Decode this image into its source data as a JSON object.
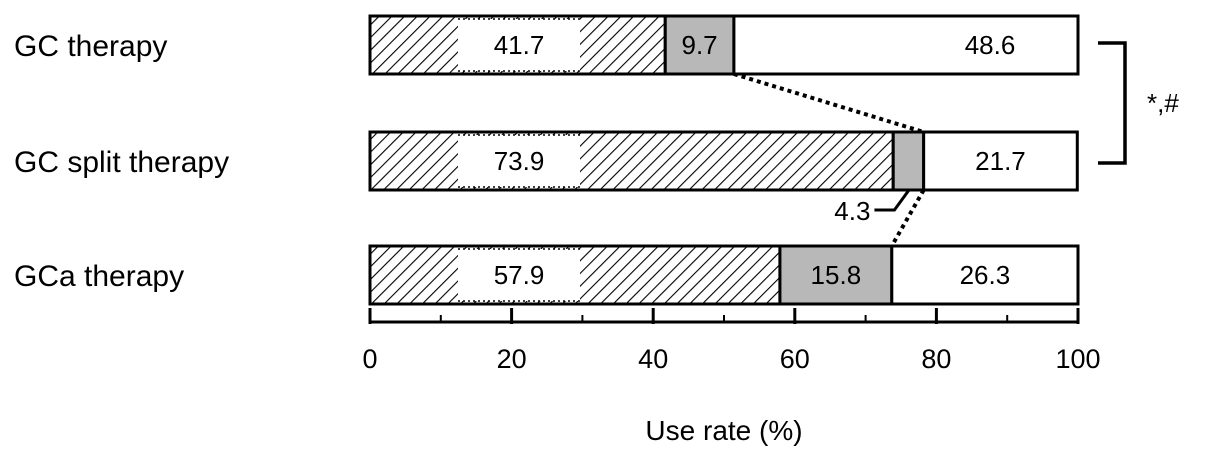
{
  "chart_data": {
    "type": "bar",
    "orientation": "horizontal",
    "stacked": true,
    "categories": [
      "GC therapy",
      "GC split therapy",
      "GCa therapy"
    ],
    "series": [
      {
        "values": [
          41.7,
          73.9,
          57.9
        ],
        "fill": "hatched"
      },
      {
        "values": [
          9.7,
          4.3,
          15.8
        ],
        "fill": "gray"
      },
      {
        "values": [
          48.6,
          21.7,
          26.3
        ],
        "fill": "white"
      }
    ],
    "xlabel": "Use rate (%)",
    "xlim": [
      0,
      100
    ],
    "xticks": [
      0,
      20,
      40,
      60,
      80,
      100
    ],
    "significance": {
      "label": "*,#",
      "between": [
        "GC therapy",
        "GC split therapy"
      ]
    },
    "colors": {
      "gray": "#b8b8b8",
      "white": "#ffffff",
      "stroke": "#000000"
    }
  }
}
